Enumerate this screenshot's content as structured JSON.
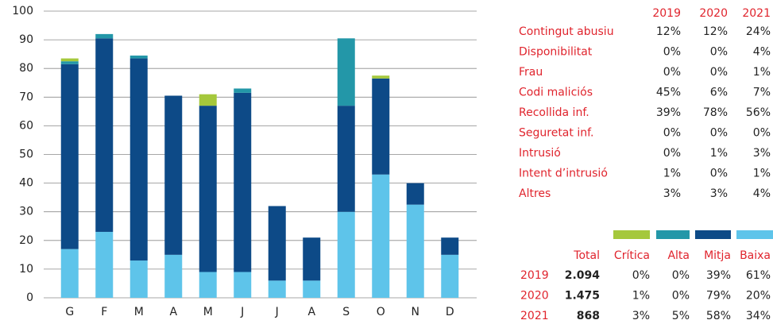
{
  "chart_data": {
    "type": "stacked_bar",
    "categories": [
      "G",
      "F",
      "M",
      "A",
      "M",
      "J",
      "J",
      "A",
      "S",
      "O",
      "N",
      "D"
    ],
    "series": [
      {
        "name": "Crítica",
        "color": "#a5c83c",
        "values": [
          1,
          0,
          0,
          0,
          4,
          0,
          0,
          0,
          0,
          1,
          0,
          0
        ]
      },
      {
        "name": "Alta",
        "color": "#2397a8",
        "values": [
          1,
          1.5,
          1,
          0,
          0,
          1.5,
          0,
          0,
          23.5,
          0,
          0,
          0
        ]
      },
      {
        "name": "Mitja",
        "color": "#0d4a87",
        "values": [
          64.5,
          67.5,
          70.5,
          55.5,
          58,
          62.5,
          26,
          15,
          37,
          33.5,
          7.5,
          6
        ]
      },
      {
        "name": "Baixa",
        "color": "#5ec4ea",
        "values": [
          17,
          23,
          13,
          15,
          9,
          9,
          6,
          6,
          30,
          43,
          32.5,
          15
        ]
      }
    ],
    "ylim": [
      0,
      100
    ],
    "yticks": [
      0,
      10,
      20,
      30,
      40,
      50,
      60,
      70,
      80,
      90,
      100
    ],
    "grid": true
  },
  "table_types": {
    "columns": [
      "2019",
      "2020",
      "2021"
    ],
    "rows": [
      {
        "label": "Contingut abusiu",
        "values": [
          "12%",
          "12%",
          "24%"
        ]
      },
      {
        "label": "Disponibilitat",
        "values": [
          "0%",
          "0%",
          "4%"
        ]
      },
      {
        "label": "Frau",
        "values": [
          "0%",
          "0%",
          "1%"
        ]
      },
      {
        "label": "Codi maliciós",
        "values": [
          "45%",
          "6%",
          "7%"
        ]
      },
      {
        "label": "Recollida inf.",
        "values": [
          "39%",
          "78%",
          "56%"
        ]
      },
      {
        "label": "Seguretat inf.",
        "values": [
          "0%",
          "0%",
          "0%"
        ]
      },
      {
        "label": "Intrusió",
        "values": [
          "0%",
          "1%",
          "3%"
        ]
      },
      {
        "label": "Intent d’intrusió",
        "values": [
          "1%",
          "0%",
          "1%"
        ]
      },
      {
        "label": "Altres",
        "values": [
          "3%",
          "3%",
          "4%"
        ]
      }
    ]
  },
  "table_totals": {
    "total_header": "Total",
    "rows": [
      {
        "year": "2019",
        "total": "2.094",
        "shares": [
          "0%",
          "0%",
          "39%",
          "61%"
        ]
      },
      {
        "year": "2020",
        "total": "1.475",
        "shares": [
          "1%",
          "0%",
          "79%",
          "20%"
        ]
      },
      {
        "year": "2021",
        "total": "868",
        "shares": [
          "3%",
          "5%",
          "58%",
          "34%"
        ]
      }
    ]
  }
}
